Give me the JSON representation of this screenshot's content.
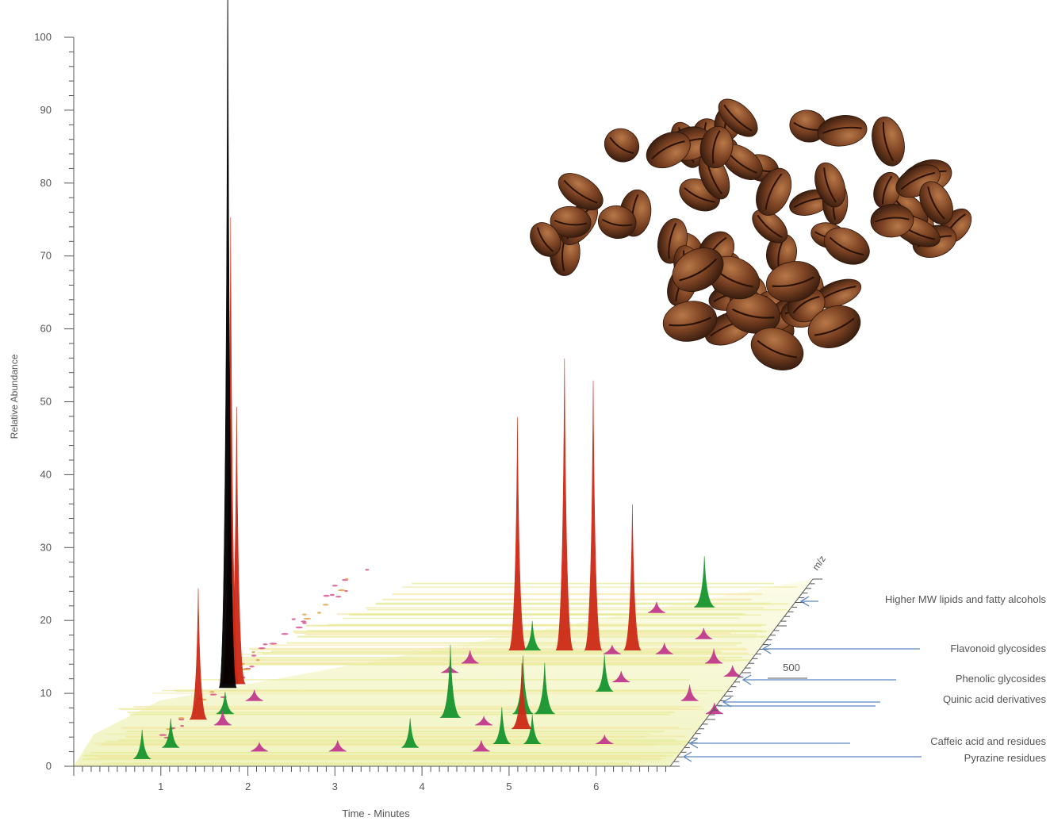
{
  "chart_data": {
    "type": "area",
    "title": "",
    "xlabel": "Time - Minutes",
    "ylabel": "Relative Abundance",
    "zlabel": "m/z",
    "xlim": [
      0,
      6.85
    ],
    "ylim": [
      0,
      100
    ],
    "x_ticks": [
      "1",
      "2",
      "3",
      "4",
      "5",
      "6"
    ],
    "y_ticks": [
      "0",
      "10",
      "20",
      "30",
      "40",
      "50",
      "60",
      "70",
      "80",
      "90",
      "100"
    ],
    "z_tick_labels": [
      "500"
    ],
    "mz_annotations": [
      "Higher MW lipids and fatty alcohols",
      "Flavonoid glycosides",
      "Phenolic glycosides",
      "Quinic acid derivatives",
      "Caffeic acid and residues",
      "Pyrazine residues"
    ],
    "series": [
      {
        "name": "",
        "color": "#000000",
        "peaks": [
          {
            "time": 1.08,
            "abundance": 104,
            "depth": 0.42
          }
        ]
      },
      {
        "name": "",
        "color": "#cc2a16",
        "peaks": [
          {
            "time": 1.08,
            "abundance": 64,
            "depth": 0.44
          },
          {
            "time": 1.15,
            "abundance": 38,
            "depth": 0.44
          },
          {
            "time": 1.02,
            "abundance": 18,
            "depth": 0.25
          },
          {
            "time": 4.08,
            "abundance": 32,
            "depth": 0.62
          },
          {
            "time": 4.62,
            "abundance": 40,
            "depth": 0.62
          },
          {
            "time": 4.95,
            "abundance": 37,
            "depth": 0.62
          },
          {
            "time": 5.4,
            "abundance": 20,
            "depth": 0.62
          },
          {
            "time": 4.82,
            "abundance": 9,
            "depth": 0.2
          }
        ]
      },
      {
        "name": "",
        "color": "#17952f",
        "peaks": [
          {
            "time": 0.72,
            "abundance": 4,
            "depth": 0.04
          },
          {
            "time": 0.95,
            "abundance": 4,
            "depth": 0.1
          },
          {
            "time": 1.28,
            "abundance": 3,
            "depth": 0.28
          },
          {
            "time": 3.9,
            "abundance": 10,
            "depth": 0.26
          },
          {
            "time": 3.7,
            "abundance": 4,
            "depth": 0.1
          },
          {
            "time": 4.7,
            "abundance": 8,
            "depth": 0.28
          },
          {
            "time": 4.95,
            "abundance": 7,
            "depth": 0.28
          },
          {
            "time": 4.72,
            "abundance": 5,
            "depth": 0.12
          },
          {
            "time": 5.07,
            "abundance": 4,
            "depth": 0.12
          },
          {
            "time": 5.44,
            "abundance": 5,
            "depth": 0.4
          },
          {
            "time": 5.85,
            "abundance": 7,
            "depth": 0.85
          },
          {
            "time": 4.25,
            "abundance": 4,
            "depth": 0.62
          }
        ]
      },
      {
        "name": "",
        "color": "#c23a8e",
        "peaks": [
          {
            "time": 1.35,
            "abundance": 2,
            "depth": 0.22
          },
          {
            "time": 1.5,
            "abundance": 1.5,
            "depth": 0.35
          },
          {
            "time": 2.0,
            "abundance": 1.2,
            "depth": 0.08
          },
          {
            "time": 2.9,
            "abundance": 1.5,
            "depth": 0.08
          },
          {
            "time": 3.5,
            "abundance": 1.0,
            "depth": 0.5
          },
          {
            "time": 3.65,
            "abundance": 1.8,
            "depth": 0.55
          },
          {
            "time": 4.55,
            "abundance": 1.5,
            "depth": 0.08
          },
          {
            "time": 5.2,
            "abundance": 1.2,
            "depth": 0.6
          },
          {
            "time": 5.55,
            "abundance": 1.5,
            "depth": 0.45
          },
          {
            "time": 5.8,
            "abundance": 1.5,
            "depth": 0.6
          },
          {
            "time": 6.12,
            "abundance": 1.5,
            "depth": 0.68
          },
          {
            "time": 6.45,
            "abundance": 2.0,
            "depth": 0.55
          },
          {
            "time": 6.5,
            "abundance": 2.2,
            "depth": 0.35
          },
          {
            "time": 6.78,
            "abundance": 1.5,
            "depth": 0.48
          },
          {
            "time": 5.35,
            "abundance": 1.5,
            "depth": 0.82
          },
          {
            "time": 5.9,
            "abundance": 1.2,
            "depth": 0.12
          },
          {
            "time": 4.35,
            "abundance": 1.2,
            "depth": 0.22
          },
          {
            "time": 6.9,
            "abundance": 1.5,
            "depth": 0.28
          }
        ]
      }
    ],
    "grid": false,
    "legend": "none"
  },
  "colors": {
    "axis": "#555555",
    "text": "#555555",
    "annotation_line": "#5a86c0",
    "heat_background": "#f2f4c8",
    "bean_dark": "#3a1e10",
    "bean_mid": "#7a4122",
    "bean_light": "#a8683d"
  },
  "decoration": {
    "image": "roasted coffee beans pile",
    "icon": "coffee-beans-icon"
  }
}
